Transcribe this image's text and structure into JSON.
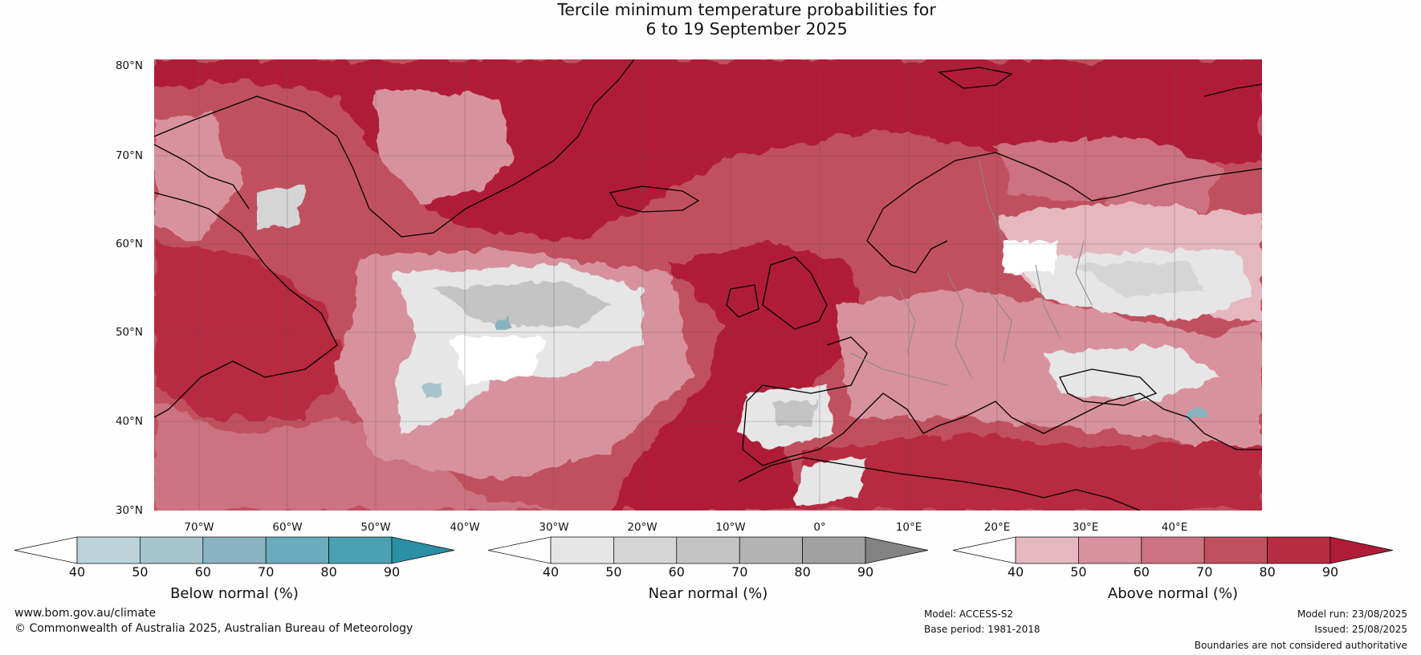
{
  "title": {
    "line1": "Tercile minimum temperature probabilities for",
    "line2": "6 to 19 September 2025"
  },
  "map": {
    "region": "North Atlantic / Europe",
    "lat_labels": [
      "80°N",
      "70°N",
      "60°N",
      "50°N",
      "40°N",
      "30°N"
    ],
    "lon_labels": [
      "70°W",
      "60°W",
      "50°W",
      "40°W",
      "30°W",
      "20°W",
      "10°W",
      "0°",
      "10°E",
      "20°E",
      "30°E",
      "40°E"
    ],
    "gridlines": true,
    "coastline_color": "#000000",
    "border_color": "#808080"
  },
  "colorbars": [
    {
      "name": "Below normal (%)",
      "ticks": [
        "40",
        "50",
        "60",
        "70",
        "80",
        "90"
      ],
      "colors": [
        "#ffffff",
        "#bcd3d9",
        "#a6c4cc",
        "#89b3c1",
        "#6aabbc",
        "#4aa1b3",
        "#2b8fa5"
      ]
    },
    {
      "name": "Near normal (%)",
      "ticks": [
        "40",
        "50",
        "60",
        "70",
        "80",
        "90"
      ],
      "colors": [
        "#ffffff",
        "#e6e6e6",
        "#d5d5d5",
        "#c4c4c4",
        "#b3b3b3",
        "#a1a1a1",
        "#838383"
      ]
    },
    {
      "name": "Above normal (%)",
      "ticks": [
        "40",
        "50",
        "60",
        "70",
        "80",
        "90"
      ],
      "colors": [
        "#ffffff",
        "#e5b7bf",
        "#d8929e",
        "#cd7280",
        "#c1505e",
        "#b72c40",
        "#b01c37"
      ]
    }
  ],
  "footer": {
    "website": "www.bom.gov.au/climate",
    "copyright": "© Commonwealth of Australia 2025, Australian Bureau of Meteorology",
    "model": "Model: ACCESS-S2",
    "base_period": "Base period: 1981-2018",
    "model_run": "Model run: 23/08/2025",
    "issued": "Issued: 25/08/2025",
    "disclaimer": "Boundaries are not considered authoritative"
  }
}
